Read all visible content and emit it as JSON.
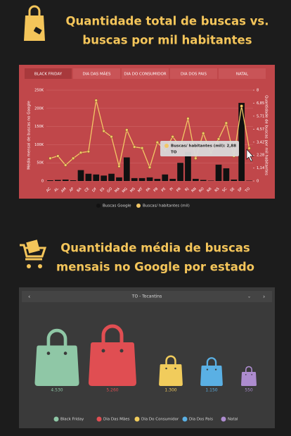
{
  "chart_data": [
    {
      "type": "bar-line",
      "title": [
        "Quantidade total de buscas vs.",
        "buscas por mil habitantes"
      ],
      "tabs": [
        "BLACK FRIDAY",
        "DIA DAS MÃES",
        "DIA DO CONSUMIDOR",
        "DIA DOS PAIS",
        "NATAL"
      ],
      "ylabel": "Média mensal de buscas no Google",
      "y2label": "Quantidade de buscas por mil habitantes",
      "categories": [
        "AC",
        "AL",
        "AM",
        "AP",
        "BA",
        "CE",
        "DF",
        "ES",
        "GO",
        "MA",
        "MG",
        "MS",
        "MT",
        "PA",
        "PB",
        "PE",
        "PI",
        "PR",
        "RJ",
        "RN",
        "RO",
        "RR",
        "RS",
        "SC",
        "SE",
        "SP",
        "TO"
      ],
      "series": [
        {
          "name": "Buscas Google",
          "color": "#111111",
          "values": [
            2000,
            3000,
            4000,
            2000,
            30000,
            20000,
            18000,
            15000,
            20000,
            10000,
            65000,
            8000,
            8000,
            10000,
            6000,
            18000,
            6000,
            50000,
            80000,
            6000,
            3000,
            1000,
            45000,
            35000,
            4000,
            215000,
            1000
          ]
        },
        {
          "name": "Buscas/ habitantes (mil)",
          "color": "#f2c766",
          "axis": "y2",
          "values": [
            2.0,
            2.2,
            1.4,
            2.0,
            2.5,
            2.6,
            7.1,
            4.4,
            3.9,
            1.3,
            4.5,
            3.0,
            2.9,
            1.2,
            3.4,
            2.7,
            3.9,
            3.0,
            5.5,
            2.0,
            4.2,
            2.5,
            3.7,
            5.1,
            2.2,
            6.6,
            2.88
          ]
        }
      ],
      "ylim": [
        0,
        250000
      ],
      "yticks": [
        0,
        {
          "value": 50000,
          "label": "50K"
        },
        {
          "value": 100000,
          "label": "100K"
        },
        {
          "value": 150000,
          "label": "150K"
        },
        {
          "value": 200000,
          "label": "200K"
        },
        {
          "value": 250000,
          "label": "250K"
        }
      ],
      "y2lim": [
        0,
        8
      ],
      "y2ticks": [
        0,
        {
          "value": 1.14,
          "label": "1,14"
        },
        {
          "value": 2.28,
          "label": "2,28"
        },
        {
          "value": 3.42,
          "label": "3,42"
        },
        {
          "value": 4.57,
          "label": "4,57"
        },
        {
          "value": 5.71,
          "label": "5,71"
        },
        {
          "value": 6.85,
          "label": "6,85"
        },
        8
      ],
      "grid": true,
      "tooltip": {
        "label": "Buscas/ habitantes (mil): 2,88",
        "category": "TO"
      }
    },
    {
      "type": "pictogram",
      "title": [
        "Quantidade média de buscas",
        "mensais no Google por estado"
      ],
      "selector": "TO - Tocantins",
      "categories": [
        "Black Friday",
        "Dia Das Mães",
        "Dia Do Consumidor",
        "Dia Dos Pais",
        "Natal"
      ],
      "values": [
        4530,
        5260,
        1300,
        1150,
        550
      ],
      "value_labels": [
        "4.530",
        "5.260",
        "1.300",
        "1.150",
        "550"
      ],
      "colors": [
        "#8fc7a6",
        "#e04e52",
        "#f1cc5c",
        "#5ab0e4",
        "#ad8ccf"
      ]
    }
  ]
}
